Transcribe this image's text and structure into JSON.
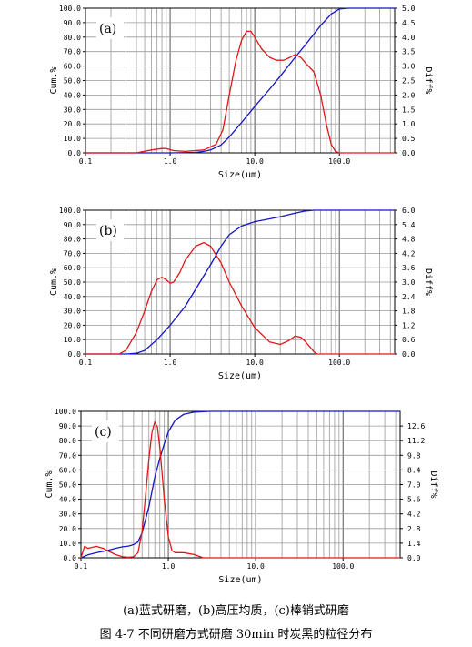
{
  "figure": {
    "subcaption": "(a)蓝式研磨，(b)高压均质，(c)棒销式研磨",
    "caption": "图 4-7 不同研磨方式研磨 30min 时炭黑的粒径分布"
  },
  "colors": {
    "cumulative": "#1515c8",
    "differential": "#e01818",
    "grid": "#888888"
  },
  "chart_data": [
    {
      "type": "line",
      "panel_label": "(a)",
      "xlabel": "Size(um)",
      "ylabel_left": "Cum.%",
      "ylabel_right": "Diff%",
      "xscale": "log",
      "xlim": [
        0.1,
        450
      ],
      "xticks": [
        "0.1",
        "1.0",
        "10.0",
        "100.0"
      ],
      "ylim_left": [
        0,
        100
      ],
      "yticks_left": [
        "0.0",
        "10.0",
        "20.0",
        "30.0",
        "40.0",
        "50.0",
        "60.0",
        "70.0",
        "80.0",
        "90.0",
        "100.0"
      ],
      "ylim_right": [
        0,
        5
      ],
      "yticks_right": [
        "0.0",
        "0.5",
        "1.0",
        "1.5",
        "2.0",
        "2.5",
        "3.0",
        "3.5",
        "4.0",
        "4.5",
        "5.0"
      ],
      "series": [
        {
          "axis": "left",
          "color": "#1515c8",
          "x": [
            0.1,
            1.0,
            2.0,
            2.5,
            3.0,
            4.0,
            5.0,
            7.0,
            10,
            15,
            20,
            30,
            40,
            60,
            80,
            100,
            130,
            450
          ],
          "y": [
            0,
            0,
            0.3,
            1.0,
            2.0,
            5.5,
            11,
            21,
            32,
            44,
            53,
            66,
            75,
            88,
            96,
            99.5,
            100,
            100
          ]
        },
        {
          "axis": "right",
          "color": "#e01818",
          "x": [
            0.1,
            0.4,
            0.6,
            0.8,
            0.9,
            1.1,
            1.5,
            2.5,
            3.5,
            4.2,
            5.0,
            6.0,
            7.0,
            8.0,
            9.0,
            10,
            12,
            15,
            18,
            22,
            26,
            30,
            35,
            40,
            50,
            60,
            70,
            80,
            90,
            100,
            110,
            450
          ],
          "y": [
            0,
            0,
            0.1,
            0.15,
            0.15,
            0.08,
            0.05,
            0.1,
            0.3,
            0.8,
            2.0,
            3.2,
            3.9,
            4.2,
            4.2,
            4.0,
            3.6,
            3.3,
            3.2,
            3.2,
            3.3,
            3.4,
            3.3,
            3.1,
            2.8,
            2.0,
            1.0,
            0.3,
            0.05,
            0,
            0,
            0
          ]
        }
      ]
    },
    {
      "type": "line",
      "panel_label": "(b)",
      "xlabel": "Size(um)",
      "ylabel_left": "Cum.%",
      "ylabel_right": "Diff%",
      "xscale": "log",
      "xlim": [
        0.1,
        450
      ],
      "xticks": [
        "0.1",
        "1.0",
        "10.0",
        "100.0"
      ],
      "ylim_left": [
        0,
        100
      ],
      "yticks_left": [
        "0.0",
        "10.0",
        "20.0",
        "30.0",
        "40.0",
        "50.0",
        "60.0",
        "70.0",
        "80.0",
        "90.0",
        "100.0"
      ],
      "ylim_right": [
        0,
        6
      ],
      "yticks_right": [
        "0.0",
        "0.6",
        "1.2",
        "1.8",
        "2.4",
        "3.0",
        "3.6",
        "4.2",
        "4.8",
        "5.4",
        "6.0"
      ],
      "series": [
        {
          "axis": "left",
          "color": "#1515c8",
          "x": [
            0.1,
            0.3,
            0.4,
            0.5,
            0.7,
            1.0,
            1.5,
            2.0,
            3.0,
            4.0,
            5.0,
            7.0,
            10,
            15,
            20,
            30,
            40,
            50,
            100,
            450
          ],
          "y": [
            0,
            0,
            0.5,
            2.5,
            10,
            20,
            33,
            45,
            62,
            75,
            83,
            89,
            92,
            94,
            95.5,
            98,
            99.5,
            100,
            100,
            100
          ]
        },
        {
          "axis": "right",
          "color": "#e01818",
          "x": [
            0.1,
            0.25,
            0.3,
            0.4,
            0.5,
            0.6,
            0.7,
            0.8,
            0.9,
            1.0,
            1.1,
            1.3,
            1.5,
            2.0,
            2.5,
            3.0,
            4.0,
            5.0,
            7.0,
            10,
            15,
            20,
            25,
            30,
            35,
            40,
            50,
            55,
            60,
            450
          ],
          "y": [
            0,
            0,
            0.15,
            0.9,
            1.8,
            2.6,
            3.1,
            3.2,
            3.1,
            2.95,
            3.0,
            3.4,
            3.9,
            4.5,
            4.65,
            4.5,
            3.8,
            3.0,
            2.0,
            1.1,
            0.5,
            0.4,
            0.55,
            0.75,
            0.7,
            0.5,
            0.1,
            0,
            0,
            0
          ]
        }
      ]
    },
    {
      "type": "line",
      "panel_label": "(c)",
      "xlabel": "Size(um)",
      "ylabel_left": "Cum.%",
      "ylabel_right": "Diff%",
      "xscale": "log",
      "xlim": [
        0.1,
        450
      ],
      "xticks": [
        "0.1",
        "1.0",
        "10.0",
        "100.0"
      ],
      "ylim_left": [
        0,
        100
      ],
      "yticks_left": [
        "0.0",
        "10.0",
        "20.0",
        "30.0",
        "40.0",
        "50.0",
        "60.0",
        "70.0",
        "80.0",
        "90.0",
        "100.0"
      ],
      "ylim_right": [
        0,
        14
      ],
      "yticks_right": [
        "0.0",
        "1.4",
        "2.8",
        "4.2",
        "5.6",
        "7.0",
        "8.4",
        "9.8",
        "11.2",
        "12.6"
      ],
      "series": [
        {
          "axis": "left",
          "color": "#1515c8",
          "x": [
            0.1,
            0.12,
            0.15,
            0.2,
            0.25,
            0.3,
            0.35,
            0.4,
            0.45,
            0.5,
            0.6,
            0.7,
            0.8,
            0.9,
            1.0,
            1.2,
            1.5,
            2.0,
            3.0,
            450
          ],
          "y": [
            0,
            2,
            3.5,
            5,
            6.5,
            7.5,
            8,
            9,
            11,
            17,
            35,
            55,
            68,
            78,
            86,
            94,
            98,
            99.5,
            100,
            100
          ]
        },
        {
          "axis": "right",
          "color": "#e01818",
          "x": [
            0.1,
            0.11,
            0.12,
            0.15,
            0.18,
            0.2,
            0.25,
            0.3,
            0.35,
            0.4,
            0.45,
            0.5,
            0.55,
            0.6,
            0.65,
            0.7,
            0.75,
            0.8,
            0.85,
            0.9,
            1.0,
            1.1,
            1.2,
            1.5,
            2.0,
            2.5,
            450
          ],
          "y": [
            0,
            1.1,
            0.9,
            1.1,
            0.9,
            0.7,
            0.3,
            0.1,
            0.05,
            0.1,
            0.5,
            2.5,
            6.0,
            9.5,
            12.0,
            13.0,
            12.5,
            10.5,
            8.0,
            5.5,
            2.0,
            0.7,
            0.5,
            0.5,
            0.3,
            0,
            0
          ]
        }
      ]
    }
  ]
}
